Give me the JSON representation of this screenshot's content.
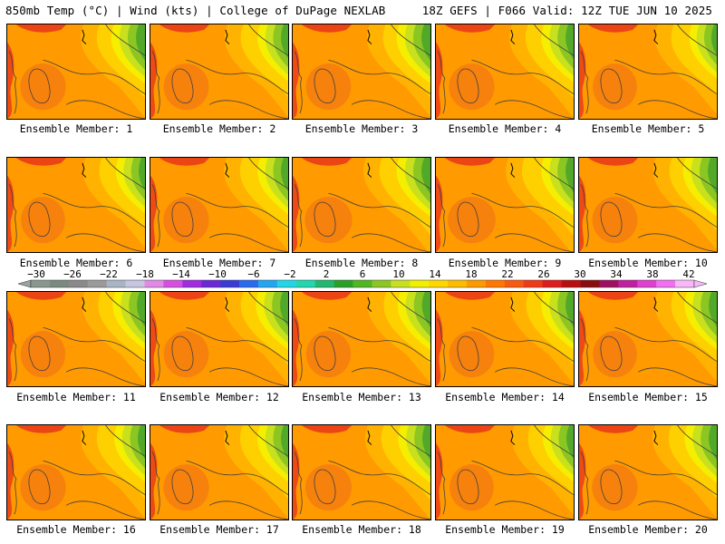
{
  "header": {
    "left": "850mb Temp (°C) | Wind (kts) | College of DuPage NEXLAB",
    "right": "18Z GEFS | F066 Valid: 12Z TUE JUN 10 2025"
  },
  "members": [
    {
      "label": "Ensemble Member: 1",
      "warm": 0.62,
      "cool": 0.45
    },
    {
      "label": "Ensemble Member: 2",
      "warm": 0.6,
      "cool": 0.35
    },
    {
      "label": "Ensemble Member: 3",
      "warm": 0.6,
      "cool": 0.45
    },
    {
      "label": "Ensemble Member: 4",
      "warm": 0.62,
      "cool": 0.4
    },
    {
      "label": "Ensemble Member: 5",
      "warm": 0.55,
      "cool": 0.25
    },
    {
      "label": "Ensemble Member: 6",
      "warm": 0.55,
      "cool": 0.3
    },
    {
      "label": "Ensemble Member: 7",
      "warm": 0.62,
      "cool": 0.35
    },
    {
      "label": "Ensemble Member: 8",
      "warm": 0.7,
      "cool": 0.45
    },
    {
      "label": "Ensemble Member: 9",
      "warm": 0.72,
      "cool": 0.4
    },
    {
      "label": "Ensemble Member: 10",
      "warm": 0.6,
      "cool": 0.45
    },
    {
      "label": "Ensemble Member: 11",
      "warm": 0.58,
      "cool": 0.4
    },
    {
      "label": "Ensemble Member: 12",
      "warm": 0.6,
      "cool": 0.4
    },
    {
      "label": "Ensemble Member: 13",
      "warm": 0.58,
      "cool": 0.42
    },
    {
      "label": "Ensemble Member: 14",
      "warm": 0.6,
      "cool": 0.4
    },
    {
      "label": "Ensemble Member: 15",
      "warm": 0.55,
      "cool": 0.4
    },
    {
      "label": "Ensemble Member: 16",
      "warm": 0.62,
      "cool": 0.35
    },
    {
      "label": "Ensemble Member: 17",
      "warm": 0.62,
      "cool": 0.35
    },
    {
      "label": "Ensemble Member: 18",
      "warm": 0.65,
      "cool": 0.4
    },
    {
      "label": "Ensemble Member: 19",
      "warm": 0.55,
      "cool": 0.35
    },
    {
      "label": "Ensemble Member: 20",
      "warm": 0.62,
      "cool": 0.4
    }
  ],
  "colorbar": {
    "labels": [
      "−30",
      "−26",
      "−22",
      "−18",
      "−14",
      "−10",
      "−6",
      "−2",
      "2",
      "6",
      "10",
      "14",
      "18",
      "22",
      "26",
      "30",
      "34",
      "38",
      "42"
    ],
    "colors": [
      "#8a978f",
      "#7a8a80",
      "#8a8a8a",
      "#9a9a9a",
      "#a9b4c4",
      "#c6c6e0",
      "#e08ae6",
      "#d64fe0",
      "#a02de0",
      "#6a2ad6",
      "#3a3ad6",
      "#2a6af0",
      "#22a6f0",
      "#22d6e6",
      "#22d6b0",
      "#22b870",
      "#2aa02a",
      "#52b622",
      "#8cc622",
      "#c8e01e",
      "#f0f000",
      "#ffd800",
      "#ffbb00",
      "#ff9900",
      "#ff7700",
      "#f85a10",
      "#ee3a18",
      "#dd1c1c",
      "#b81010",
      "#8a0e0e",
      "#a01060",
      "#c020a0",
      "#e040d0",
      "#f070f0",
      "#f8b8f8"
    ]
  }
}
